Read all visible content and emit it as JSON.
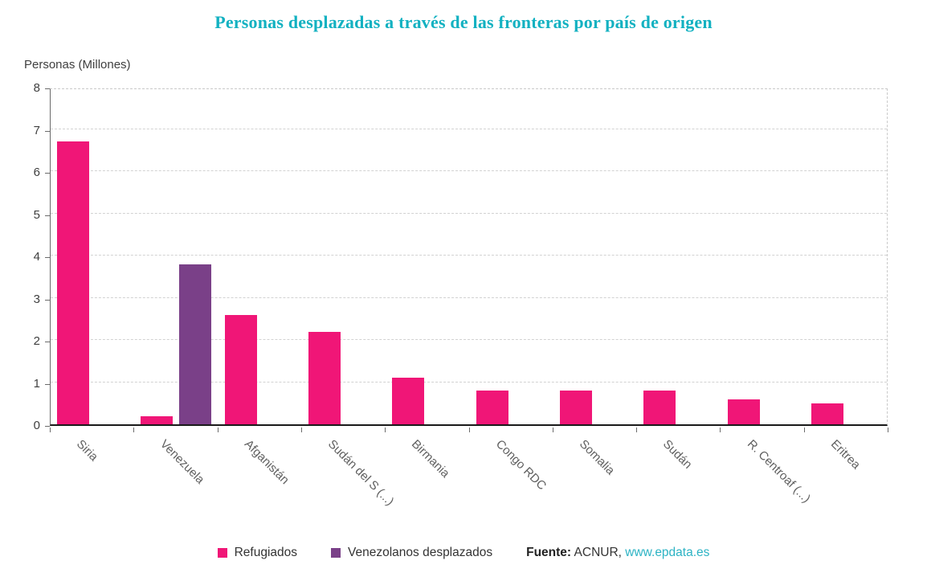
{
  "page": {
    "title": "Personas desplazadas a través de las fronteras por país de origen"
  },
  "source": {
    "prefix": "Fuente:",
    "agency": " ACNUR, ",
    "link": "www.epdata.es"
  },
  "colors": {
    "title": "#12b1c1",
    "refugiados": "#f01677",
    "venezolanos": "#7a4088",
    "link": "#2cb3c4"
  },
  "chart_data": {
    "type": "bar",
    "title": "Personas desplazadas a través de las fronteras por país de origen",
    "ylabel": "Personas (Millones)",
    "xlabel": "",
    "ylim": [
      0,
      8
    ],
    "yticks": [
      0,
      1,
      2,
      3,
      4,
      5,
      6,
      7,
      8
    ],
    "grid": true,
    "grid_style": "dashed",
    "legend_position": "bottom",
    "categories": [
      "Siria",
      "Venezuela",
      "Afganistán",
      "Sudán del S (...)",
      "Birmania",
      "Congo RDC",
      "Somalia",
      "Sudán",
      "R. Centroaf (...)",
      "Eritrea"
    ],
    "series": [
      {
        "name": "Refugiados",
        "color": "#f01677",
        "values": [
          6.7,
          0.2,
          2.6,
          2.2,
          1.1,
          0.8,
          0.8,
          0.8,
          0.6,
          0.5
        ]
      },
      {
        "name": "Venezolanos desplazados",
        "color": "#7a4088",
        "values": [
          0,
          3.8,
          0,
          0,
          0,
          0,
          0,
          0,
          0,
          0
        ]
      }
    ]
  }
}
